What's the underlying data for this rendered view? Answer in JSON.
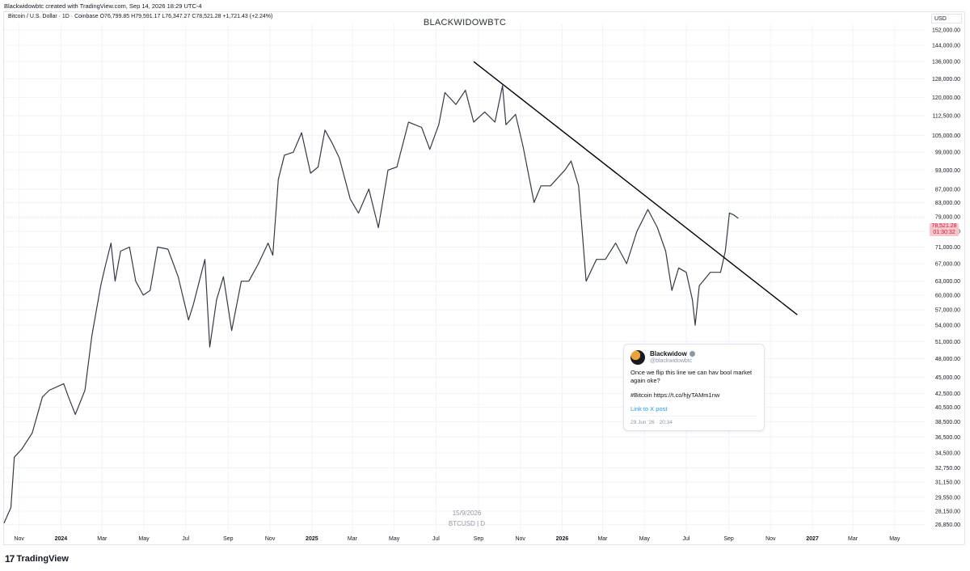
{
  "header": {
    "created": "Blackwidowbtc created with TradingView.com, Sep 14, 2026 18:29 UTC-4",
    "symbol_line": "Bitcoin / U.S. Dollar · 1D · Coinbase",
    "open": "O76,799.85",
    "high": "H79,591.17",
    "low": "L76,347.27",
    "close": "C78,521.28",
    "change": "+1,721.43 (+2.24%)",
    "title": "BLACKWIDOWBTC",
    "currency": "USD"
  },
  "price_tag": {
    "price": "78,521.28",
    "countdown": "01:30:32"
  },
  "watermark": {
    "date": "15/9/2026",
    "symbol": "BTCUSD | D"
  },
  "brand": {
    "mark": "17",
    "name": "TradingView"
  },
  "tweet": {
    "name": "Blackwidow",
    "handle": "@blackwidowbtc",
    "line1": "Once we flip this line we can hav bool market again oke?",
    "line2": "#Bitcoin https://t.co/hjyTAMm1nw",
    "link": "Link to X post",
    "date": "29 Jun '26 · 20:34"
  },
  "colors": {
    "candle": "#363a45",
    "grid": "#f0f3fa",
    "trendline": "#000000",
    "tag_bg": "#f5c6cc",
    "tag_text": "#d01c2e"
  },
  "chart_data": {
    "type": "line",
    "title": "BLACKWIDOWBTC",
    "series_kind": "daily candlesticks (approximated by a line through closes)",
    "y_axis": {
      "scale": "log",
      "ylim": [
        26000,
        155000
      ],
      "ticks": [
        "152,000.00",
        "144,000.00",
        "136,000.00",
        "128,000.00",
        "120,000.00",
        "112,500.00",
        "105,000.00",
        "99,000.00",
        "93,000.00",
        "87,000.00",
        "83,000.00",
        "79,000.00",
        "75,000.00",
        "71,000.00",
        "67,000.00",
        "63,000.00",
        "60,000.00",
        "57,000.00",
        "54,000.00",
        "51,000.00",
        "48,000.00",
        "45,000.00",
        "42,500.00",
        "40,500.00",
        "38,500.00",
        "36,500.00",
        "34,500.00",
        "32,750.00",
        "31,150.00",
        "29,550.00",
        "28,150.00",
        "26,850.00"
      ],
      "tick_values": [
        152000,
        144000,
        136000,
        128000,
        120000,
        112500,
        105000,
        99000,
        93000,
        87000,
        83000,
        79000,
        75000,
        71000,
        67000,
        63000,
        60000,
        57000,
        54000,
        51000,
        48000,
        45000,
        42500,
        40500,
        38500,
        36500,
        34500,
        32750,
        31150,
        29550,
        28150,
        26850
      ]
    },
    "x_axis": {
      "range": [
        "2023-10-10",
        "2027-06-15"
      ],
      "ticks": [
        {
          "label": "Nov",
          "date": "2023-11-01",
          "bold": false
        },
        {
          "label": "2024",
          "date": "2024-01-01",
          "bold": true
        },
        {
          "label": "Mar",
          "date": "2024-03-01",
          "bold": false
        },
        {
          "label": "May",
          "date": "2024-05-01",
          "bold": false
        },
        {
          "label": "Jul",
          "date": "2024-07-01",
          "bold": false
        },
        {
          "label": "Sep",
          "date": "2024-09-01",
          "bold": false
        },
        {
          "label": "Nov",
          "date": "2024-11-01",
          "bold": false
        },
        {
          "label": "2025",
          "date": "2025-01-01",
          "bold": true
        },
        {
          "label": "Mar",
          "date": "2025-03-01",
          "bold": false
        },
        {
          "label": "May",
          "date": "2025-05-01",
          "bold": false
        },
        {
          "label": "Jul",
          "date": "2025-07-01",
          "bold": false
        },
        {
          "label": "Sep",
          "date": "2025-09-01",
          "bold": false
        },
        {
          "label": "Nov",
          "date": "2025-11-01",
          "bold": false
        },
        {
          "label": "2026",
          "date": "2026-01-01",
          "bold": true
        },
        {
          "label": "Mar",
          "date": "2026-03-01",
          "bold": false
        },
        {
          "label": "May",
          "date": "2026-05-01",
          "bold": false
        },
        {
          "label": "Jul",
          "date": "2026-07-01",
          "bold": false
        },
        {
          "label": "Sep",
          "date": "2026-09-01",
          "bold": false
        },
        {
          "label": "Nov",
          "date": "2026-11-01",
          "bold": false
        },
        {
          "label": "2027",
          "date": "2027-01-01",
          "bold": true
        },
        {
          "label": "Mar",
          "date": "2027-03-01",
          "bold": false
        },
        {
          "label": "May",
          "date": "2027-05-01",
          "bold": false
        }
      ]
    },
    "series": [
      {
        "points": [
          [
            "2023-10-10",
            27000
          ],
          [
            "2023-10-20",
            28500
          ],
          [
            "2023-10-25",
            34000
          ],
          [
            "2023-11-05",
            35000
          ],
          [
            "2023-11-20",
            37000
          ],
          [
            "2023-12-05",
            42000
          ],
          [
            "2023-12-15",
            43000
          ],
          [
            "2024-01-05",
            44000
          ],
          [
            "2024-01-12",
            42000
          ],
          [
            "2024-01-22",
            39500
          ],
          [
            "2024-02-05",
            43000
          ],
          [
            "2024-02-15",
            52000
          ],
          [
            "2024-02-28",
            62000
          ],
          [
            "2024-03-05",
            66000
          ],
          [
            "2024-03-14",
            72000
          ],
          [
            "2024-03-20",
            63000
          ],
          [
            "2024-03-28",
            70000
          ],
          [
            "2024-04-10",
            71000
          ],
          [
            "2024-04-19",
            63000
          ],
          [
            "2024-04-30",
            60000
          ],
          [
            "2024-05-10",
            61000
          ],
          [
            "2024-05-21",
            71000
          ],
          [
            "2024-06-05",
            70500
          ],
          [
            "2024-06-20",
            64000
          ],
          [
            "2024-07-05",
            55000
          ],
          [
            "2024-07-12",
            58000
          ],
          [
            "2024-07-29",
            68000
          ],
          [
            "2024-08-05",
            50000
          ],
          [
            "2024-08-15",
            59000
          ],
          [
            "2024-08-25",
            64000
          ],
          [
            "2024-09-06",
            53000
          ],
          [
            "2024-09-20",
            63000
          ],
          [
            "2024-10-01",
            63000
          ],
          [
            "2024-10-15",
            67000
          ],
          [
            "2024-10-29",
            72000
          ],
          [
            "2024-11-05",
            69000
          ],
          [
            "2024-11-13",
            90000
          ],
          [
            "2024-11-22",
            98000
          ],
          [
            "2024-12-05",
            99000
          ],
          [
            "2024-12-17",
            106000
          ],
          [
            "2024-12-30",
            92000
          ],
          [
            "2025-01-10",
            94000
          ],
          [
            "2025-01-20",
            107000
          ],
          [
            "2025-01-31",
            102000
          ],
          [
            "2025-02-10",
            97000
          ],
          [
            "2025-02-26",
            84000
          ],
          [
            "2025-03-10",
            80000
          ],
          [
            "2025-03-25",
            87000
          ],
          [
            "2025-04-08",
            76000
          ],
          [
            "2025-04-22",
            93000
          ],
          [
            "2025-05-05",
            94000
          ],
          [
            "2025-05-22",
            110000
          ],
          [
            "2025-06-10",
            108000
          ],
          [
            "2025-06-22",
            100000
          ],
          [
            "2025-07-05",
            109000
          ],
          [
            "2025-07-14",
            122000
          ],
          [
            "2025-07-30",
            117000
          ],
          [
            "2025-08-13",
            123000
          ],
          [
            "2025-08-25",
            110000
          ],
          [
            "2025-09-10",
            114000
          ],
          [
            "2025-09-25",
            110000
          ],
          [
            "2025-10-06",
            125000
          ],
          [
            "2025-10-11",
            109000
          ],
          [
            "2025-10-25",
            113000
          ],
          [
            "2025-11-05",
            101000
          ],
          [
            "2025-11-21",
            83000
          ],
          [
            "2025-12-01",
            88000
          ],
          [
            "2025-12-15",
            88000
          ],
          [
            "2026-01-05",
            93000
          ],
          [
            "2026-01-14",
            96000
          ],
          [
            "2026-01-25",
            88000
          ],
          [
            "2026-02-05",
            63000
          ],
          [
            "2026-02-20",
            68000
          ],
          [
            "2026-03-05",
            68000
          ],
          [
            "2026-03-20",
            72000
          ],
          [
            "2026-04-05",
            67000
          ],
          [
            "2026-04-20",
            75000
          ],
          [
            "2026-05-06",
            81000
          ],
          [
            "2026-05-20",
            76000
          ],
          [
            "2026-06-01",
            70000
          ],
          [
            "2026-06-10",
            61000
          ],
          [
            "2026-06-20",
            66000
          ],
          [
            "2026-07-01",
            65000
          ],
          [
            "2026-07-10",
            59000
          ],
          [
            "2026-07-14",
            54000
          ],
          [
            "2026-07-20",
            62000
          ],
          [
            "2026-08-05",
            65000
          ],
          [
            "2026-08-20",
            65000
          ],
          [
            "2026-08-27",
            70000
          ],
          [
            "2026-09-02",
            80000
          ],
          [
            "2026-09-08",
            79500
          ],
          [
            "2026-09-15",
            78521
          ]
        ]
      }
    ],
    "trendline": {
      "from": [
        "2025-08-25",
        136000
      ],
      "to": [
        "2026-12-10",
        56000
      ]
    },
    "last_price": "78,521.28"
  }
}
